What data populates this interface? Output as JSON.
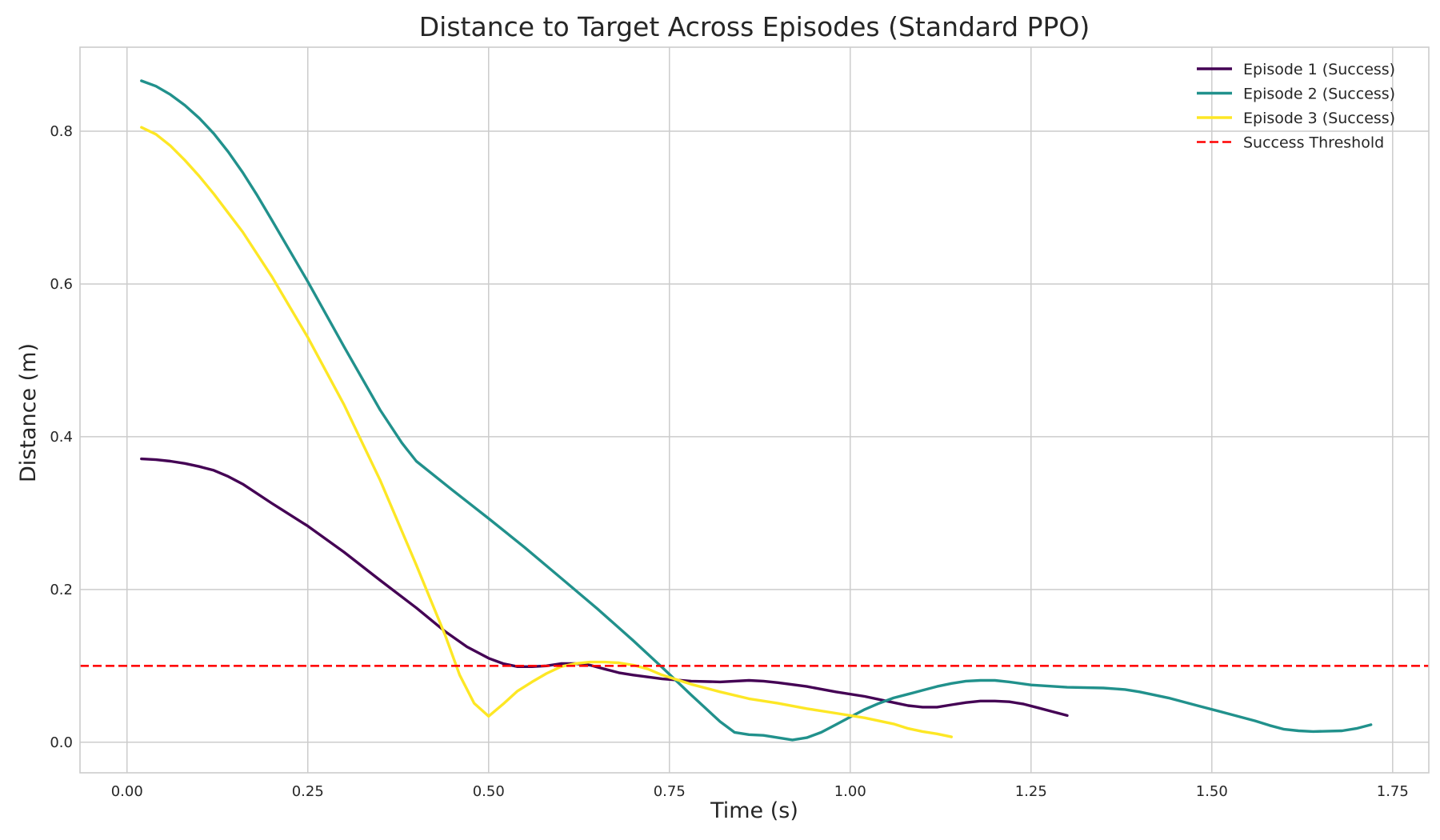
{
  "chart_data": {
    "type": "line",
    "title": "Distance to Target Across Episodes (Standard PPO)",
    "xlabel": "Time (s)",
    "ylabel": "Distance (m)",
    "xlim": [
      -0.065,
      1.8
    ],
    "ylim": [
      -0.04,
      0.91
    ],
    "xticks": [
      0.0,
      0.25,
      0.5,
      0.75,
      1.0,
      1.25,
      1.5,
      1.75
    ],
    "xtick_labels": [
      "0.00",
      "0.25",
      "0.50",
      "0.75",
      "1.00",
      "1.25",
      "1.50",
      "1.75"
    ],
    "yticks": [
      0.0,
      0.2,
      0.4,
      0.6,
      0.8
    ],
    "ytick_labels": [
      "0.0",
      "0.2",
      "0.4",
      "0.6",
      "0.8"
    ],
    "grid": true,
    "legend_position": "top-right",
    "series": [
      {
        "name": "Episode 1 (Success)",
        "color": "#440154",
        "style": "solid",
        "x": [
          0.02,
          0.04,
          0.06,
          0.08,
          0.1,
          0.12,
          0.14,
          0.16,
          0.2,
          0.25,
          0.3,
          0.35,
          0.4,
          0.44,
          0.47,
          0.5,
          0.52,
          0.54,
          0.56,
          0.58,
          0.6,
          0.62,
          0.64,
          0.66,
          0.68,
          0.7,
          0.74,
          0.78,
          0.82,
          0.86,
          0.88,
          0.9,
          0.94,
          0.98,
          1.02,
          1.06,
          1.08,
          1.1,
          1.12,
          1.14,
          1.16,
          1.18,
          1.2,
          1.22,
          1.24,
          1.26,
          1.28,
          1.3
        ],
        "values": [
          0.371,
          0.37,
          0.368,
          0.365,
          0.361,
          0.356,
          0.348,
          0.338,
          0.313,
          0.283,
          0.249,
          0.212,
          0.176,
          0.145,
          0.125,
          0.11,
          0.103,
          0.099,
          0.099,
          0.1,
          0.103,
          0.103,
          0.101,
          0.096,
          0.091,
          0.088,
          0.083,
          0.08,
          0.079,
          0.081,
          0.08,
          0.078,
          0.073,
          0.066,
          0.06,
          0.052,
          0.048,
          0.046,
          0.046,
          0.049,
          0.052,
          0.054,
          0.054,
          0.053,
          0.05,
          0.045,
          0.04,
          0.035
        ]
      },
      {
        "name": "Episode 2 (Success)",
        "color": "#21918c",
        "style": "solid",
        "x": [
          0.02,
          0.04,
          0.06,
          0.08,
          0.1,
          0.12,
          0.14,
          0.16,
          0.18,
          0.2,
          0.25,
          0.3,
          0.35,
          0.38,
          0.4,
          0.45,
          0.5,
          0.55,
          0.6,
          0.65,
          0.7,
          0.74,
          0.78,
          0.82,
          0.84,
          0.86,
          0.88,
          0.9,
          0.92,
          0.94,
          0.96,
          0.98,
          1.0,
          1.02,
          1.04,
          1.06,
          1.08,
          1.1,
          1.12,
          1.14,
          1.16,
          1.18,
          1.2,
          1.22,
          1.25,
          1.3,
          1.35,
          1.38,
          1.4,
          1.44,
          1.48,
          1.52,
          1.56,
          1.58,
          1.6,
          1.62,
          1.64,
          1.68,
          1.7,
          1.72
        ],
        "values": [
          0.866,
          0.859,
          0.848,
          0.834,
          0.817,
          0.797,
          0.773,
          0.746,
          0.716,
          0.684,
          0.603,
          0.518,
          0.435,
          0.392,
          0.368,
          0.33,
          0.293,
          0.255,
          0.215,
          0.175,
          0.133,
          0.098,
          0.062,
          0.027,
          0.013,
          0.01,
          0.009,
          0.006,
          0.003,
          0.006,
          0.013,
          0.023,
          0.033,
          0.043,
          0.051,
          0.058,
          0.063,
          0.068,
          0.073,
          0.077,
          0.08,
          0.081,
          0.081,
          0.079,
          0.075,
          0.072,
          0.071,
          0.069,
          0.066,
          0.058,
          0.048,
          0.038,
          0.028,
          0.022,
          0.017,
          0.015,
          0.014,
          0.015,
          0.018,
          0.023
        ]
      },
      {
        "name": "Episode 3 (Success)",
        "color": "#fde725",
        "style": "solid",
        "x": [
          0.02,
          0.04,
          0.06,
          0.08,
          0.1,
          0.12,
          0.14,
          0.16,
          0.2,
          0.25,
          0.3,
          0.35,
          0.4,
          0.44,
          0.46,
          0.48,
          0.5,
          0.52,
          0.54,
          0.56,
          0.58,
          0.6,
          0.62,
          0.64,
          0.66,
          0.68,
          0.7,
          0.72,
          0.74,
          0.78,
          0.82,
          0.86,
          0.9,
          0.94,
          0.98,
          1.02,
          1.06,
          1.08,
          1.1,
          1.12,
          1.14
        ],
        "values": [
          0.805,
          0.796,
          0.781,
          0.762,
          0.741,
          0.718,
          0.693,
          0.668,
          0.61,
          0.53,
          0.442,
          0.343,
          0.232,
          0.14,
          0.088,
          0.051,
          0.034,
          0.05,
          0.067,
          0.079,
          0.09,
          0.099,
          0.103,
          0.105,
          0.105,
          0.104,
          0.101,
          0.096,
          0.088,
          0.076,
          0.066,
          0.057,
          0.051,
          0.044,
          0.038,
          0.032,
          0.024,
          0.018,
          0.014,
          0.011,
          0.007
        ]
      },
      {
        "name": "Success Threshold",
        "color": "#ff0000",
        "style": "dashed",
        "x": [
          -0.065,
          1.8
        ],
        "values": [
          0.1,
          0.1
        ]
      }
    ]
  }
}
